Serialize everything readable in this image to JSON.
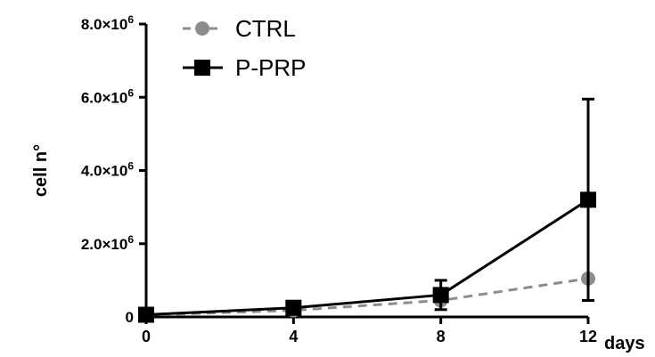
{
  "chart_data": {
    "type": "line",
    "title": "",
    "xlabel": "days",
    "ylabel": "cell n°",
    "x": [
      0,
      4,
      8,
      12
    ],
    "xlim": [
      0,
      12
    ],
    "ylim": [
      0,
      8000000
    ],
    "xticks": [
      {
        "value": 0,
        "label": "0"
      },
      {
        "value": 4,
        "label": "4"
      },
      {
        "value": 8,
        "label": "8"
      },
      {
        "value": 12,
        "label": "12"
      }
    ],
    "yticks": [
      {
        "value": 0,
        "label": "0",
        "exp": ""
      },
      {
        "value": 2000000,
        "label": "2.0×10",
        "exp": "6"
      },
      {
        "value": 4000000,
        "label": "4.0×10",
        "exp": "6"
      },
      {
        "value": 6000000,
        "label": "6.0×10",
        "exp": "6"
      },
      {
        "value": 8000000,
        "label": "8.0×10",
        "exp": "6"
      }
    ],
    "grid": false,
    "legend_position": "top-left",
    "series": [
      {
        "name": "CTRL",
        "color": "#8c8c8c",
        "line_style": "dashed",
        "marker": "circle",
        "values": [
          50000,
          180000,
          450000,
          1050000
        ],
        "errors": [
          10000,
          20000,
          50000,
          50000
        ]
      },
      {
        "name": "P-PRP",
        "color": "#000000",
        "line_style": "solid",
        "marker": "square",
        "values": [
          60000,
          250000,
          600000,
          3200000
        ],
        "errors": [
          20000,
          30000,
          400000,
          2750000
        ]
      }
    ]
  }
}
